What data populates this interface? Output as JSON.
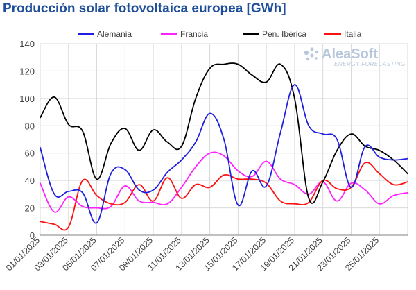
{
  "title": "Producción solar fotovoltaica europea [GWh]",
  "watermark": {
    "brand": "AleaSoft",
    "tagline": "ENERGY FORECASTING",
    "color": "#b8c7dc"
  },
  "chart_data": {
    "type": "line",
    "title": "Producción solar fotovoltaica europea [GWh]",
    "xlabel": "",
    "ylabel": "",
    "ylim": [
      0,
      140
    ],
    "yticks": [
      0,
      20,
      40,
      60,
      80,
      100,
      120,
      140
    ],
    "grid": true,
    "legend_position": "top",
    "x": [
      "01/01/2025",
      "02/01/2025",
      "03/01/2025",
      "04/01/2025",
      "05/01/2025",
      "06/01/2025",
      "07/01/2025",
      "08/01/2025",
      "09/01/2025",
      "10/01/2025",
      "11/01/2025",
      "12/01/2025",
      "13/01/2025",
      "14/01/2025",
      "15/01/2025",
      "16/01/2025",
      "17/01/2025",
      "18/01/2025",
      "19/01/2025",
      "20/01/2025",
      "21/01/2025",
      "22/01/2025",
      "23/01/2025",
      "24/01/2025",
      "25/01/2025",
      "26/01/2025",
      "27/01/2025"
    ],
    "xtick_labels": [
      "01/01/2025",
      "03/01/2025",
      "05/01/2025",
      "07/01/2025",
      "09/01/2025",
      "11/01/2025",
      "13/01/2025",
      "15/01/2025",
      "17/01/2025",
      "19/01/2025",
      "21/01/2025",
      "23/01/2025",
      "25/01/2025"
    ],
    "series": [
      {
        "name": "Alemania",
        "color": "#1f1fe0",
        "values": [
          64,
          30,
          32,
          31,
          9,
          45,
          48,
          33,
          33,
          46,
          55,
          68,
          89,
          70,
          22,
          47,
          36,
          75,
          110,
          80,
          74,
          70,
          35,
          65,
          57,
          55,
          56
        ]
      },
      {
        "name": "Francia",
        "color": "#ff20ff",
        "values": [
          38,
          17,
          28,
          21,
          20,
          21,
          36,
          25,
          24,
          23,
          35,
          50,
          60,
          58,
          47,
          43,
          54,
          41,
          37,
          30,
          39,
          25,
          38,
          33,
          23,
          29,
          31
        ]
      },
      {
        "name": "Pen. Ibérica",
        "color": "#000000",
        "values": [
          86,
          101,
          81,
          76,
          41,
          67,
          78,
          62,
          77,
          68,
          65,
          100,
          122,
          125,
          125,
          117,
          112,
          125,
          100,
          27,
          39,
          62,
          74,
          65,
          62,
          55,
          45
        ]
      },
      {
        "name": "Italia",
        "color": "#ff1010",
        "values": [
          10,
          8,
          6,
          40,
          29,
          23,
          24,
          37,
          25,
          42,
          27,
          37,
          35,
          44,
          41,
          41,
          38,
          25,
          23,
          24,
          40,
          34,
          35,
          53,
          45,
          37,
          39
        ]
      }
    ]
  }
}
